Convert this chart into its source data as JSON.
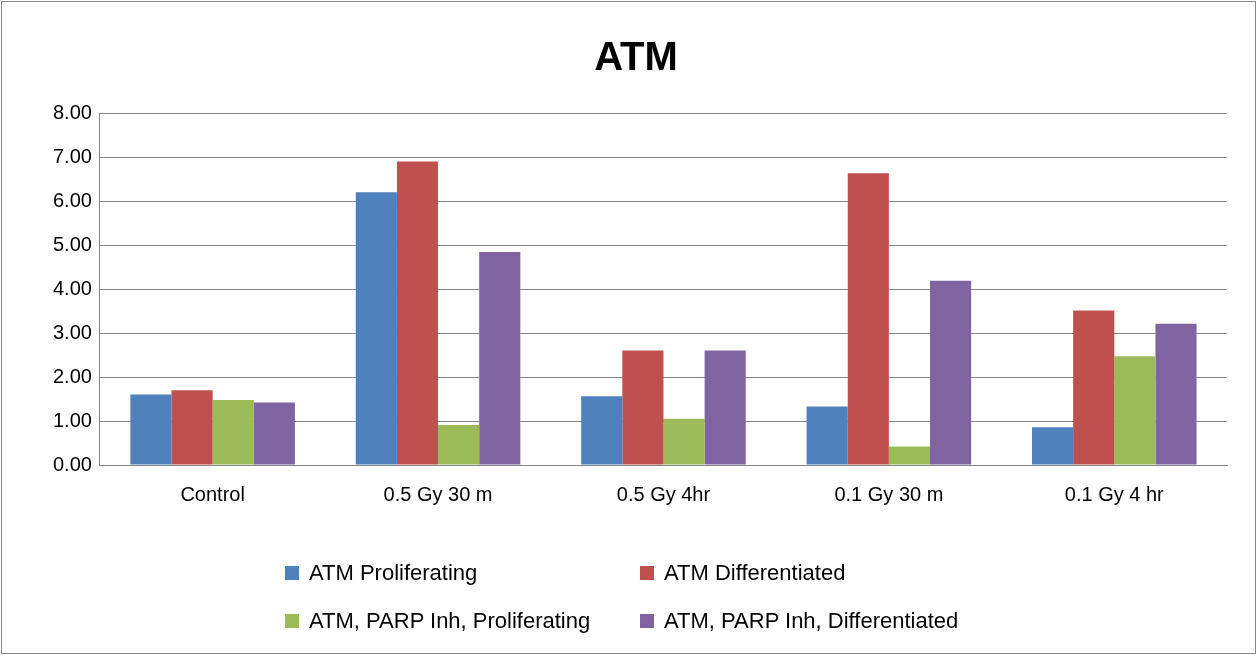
{
  "chart_data": {
    "type": "bar",
    "title": "ATM",
    "categories": [
      "Control",
      "0.5 Gy 30 m",
      "0.5 Gy 4hr",
      "0.1 Gy 30 m",
      "0.1 Gy 4 hr"
    ],
    "series": [
      {
        "name": "ATM Proliferating",
        "color": "#4f81bd",
        "values": [
          1.6,
          6.2,
          1.56,
          1.33,
          0.86
        ]
      },
      {
        "name": "ATM Differentiated",
        "color": "#c0504d",
        "values": [
          1.7,
          6.9,
          2.6,
          6.63,
          3.51
        ]
      },
      {
        "name": "ATM, PARP Inh, Proliferating",
        "color": "#9bbb59",
        "values": [
          1.48,
          0.91,
          1.05,
          0.42,
          2.47
        ]
      },
      {
        "name": "ATM, PARP Inh, Differentiated",
        "color": "#8064a2",
        "values": [
          1.42,
          4.84,
          2.6,
          4.19,
          3.21
        ]
      }
    ],
    "ylim": [
      0,
      8
    ],
    "yticks": [
      {
        "value": 0,
        "label": "0.00"
      },
      {
        "value": 1,
        "label": "1.00"
      },
      {
        "value": 2,
        "label": "2.00"
      },
      {
        "value": 3,
        "label": "3.00"
      },
      {
        "value": 4,
        "label": "4.00"
      },
      {
        "value": 5,
        "label": "5.00"
      },
      {
        "value": 6,
        "label": "6.00"
      },
      {
        "value": 7,
        "label": "7.00"
      },
      {
        "value": 8,
        "label": "8.00"
      }
    ],
    "grid": "y",
    "legend": "bottom"
  }
}
